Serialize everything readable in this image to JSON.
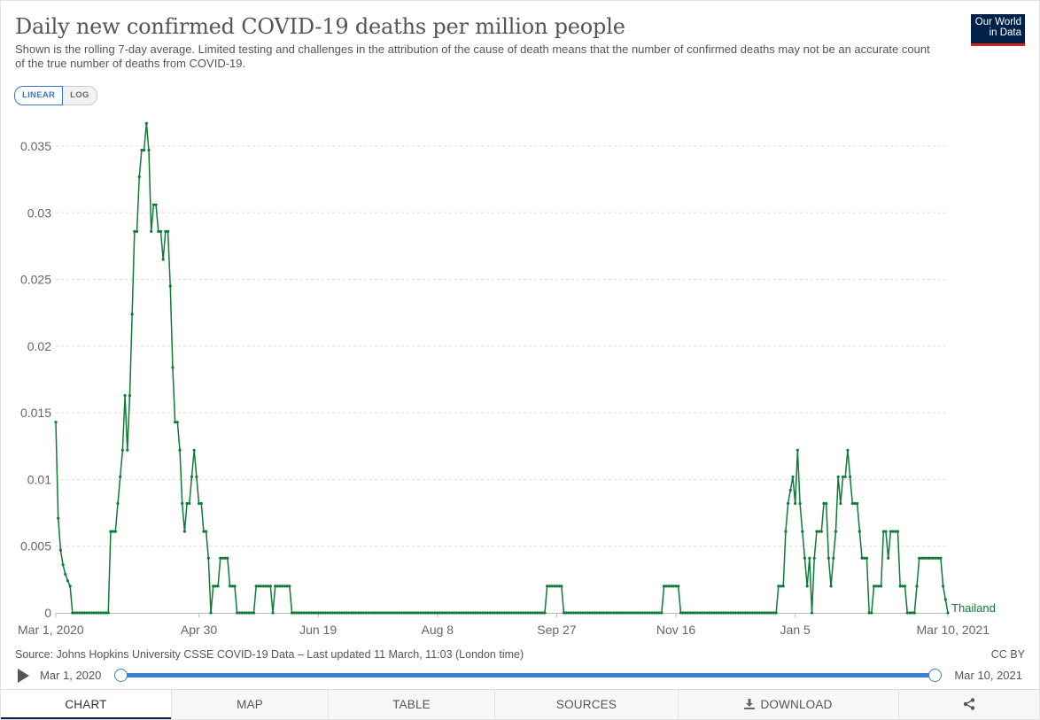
{
  "title": "Daily new confirmed COVID-19 deaths per million people",
  "subtitle": "Shown is the rolling 7-day average. Limited testing and challenges in the attribution of the cause of death means that the number of confirmed deaths may not be an accurate count of the true number of deaths from COVID-19.",
  "logo": {
    "line1": "Our World",
    "line2": "in Data"
  },
  "scale_toggle": {
    "linear": "LINEAR",
    "log": "LOG",
    "active": "LINEAR"
  },
  "colors": {
    "series": "#0f7b36",
    "grid": "#dddddd",
    "accent": "#3b80d4",
    "brand": "#002147",
    "brand_bar": "#ce261e"
  },
  "chart_data": {
    "type": "line",
    "title": "Daily new confirmed COVID-19 deaths per million people",
    "x_start": "Mar 1, 2020",
    "x_end": "Mar 10, 2021",
    "x_tick_labels": [
      "Mar 1, 2020",
      "Apr 30",
      "Jun 19",
      "Aug 8",
      "Sep 27",
      "Nov 16",
      "Jan 5",
      "Mar 10, 2021"
    ],
    "x_tick_dates": [
      "2020-03-01",
      "2020-04-30",
      "2020-06-19",
      "2020-08-08",
      "2020-09-27",
      "2020-11-16",
      "2021-01-05",
      "2021-03-10"
    ],
    "y_ticks": [
      "0",
      "0.005",
      "0.01",
      "0.015",
      "0.02",
      "0.025",
      "0.03",
      "0.035"
    ],
    "y_tick_values": [
      0,
      0.005,
      0.01,
      0.015,
      0.02,
      0.025,
      0.03,
      0.035
    ],
    "ylim": [
      0,
      0.0365
    ],
    "grid": true,
    "series": [
      {
        "name": "Thailand",
        "color": "#0f7b36",
        "points": [
          [
            "2020-03-01",
            0.0143
          ],
          [
            "2020-03-02",
            0.0071
          ],
          [
            "2020-03-03",
            0.0047
          ],
          [
            "2020-03-04",
            0.0036
          ],
          [
            "2020-03-05",
            0.0029
          ],
          [
            "2020-03-06",
            0.0024
          ],
          [
            "2020-03-07",
            0.002
          ],
          [
            "2020-03-08",
            0
          ],
          [
            "2020-03-23",
            0
          ],
          [
            "2020-03-24",
            0.0061
          ],
          [
            "2020-03-26",
            0.0061
          ],
          [
            "2020-03-27",
            0.0082
          ],
          [
            "2020-03-28",
            0.0102
          ],
          [
            "2020-03-29",
            0.0122
          ],
          [
            "2020-03-30",
            0.0163
          ],
          [
            "2020-03-31",
            0.0122
          ],
          [
            "2020-04-01",
            0.0163
          ],
          [
            "2020-04-02",
            0.0224
          ],
          [
            "2020-04-03",
            0.0286
          ],
          [
            "2020-04-04",
            0.0286
          ],
          [
            "2020-04-05",
            0.0327
          ],
          [
            "2020-04-06",
            0.0347
          ],
          [
            "2020-04-07",
            0.0347
          ],
          [
            "2020-04-08",
            0.0367
          ],
          [
            "2020-04-09",
            0.0347
          ],
          [
            "2020-04-10",
            0.0286
          ],
          [
            "2020-04-11",
            0.0306
          ],
          [
            "2020-04-12",
            0.0306
          ],
          [
            "2020-04-13",
            0.0286
          ],
          [
            "2020-04-14",
            0.0286
          ],
          [
            "2020-04-15",
            0.0265
          ],
          [
            "2020-04-16",
            0.0286
          ],
          [
            "2020-04-17",
            0.0286
          ],
          [
            "2020-04-18",
            0.0245
          ],
          [
            "2020-04-19",
            0.0184
          ],
          [
            "2020-04-20",
            0.0143
          ],
          [
            "2020-04-21",
            0.0143
          ],
          [
            "2020-04-22",
            0.0122
          ],
          [
            "2020-04-23",
            0.0082
          ],
          [
            "2020-04-24",
            0.0061
          ],
          [
            "2020-04-25",
            0.0082
          ],
          [
            "2020-04-26",
            0.0082
          ],
          [
            "2020-04-27",
            0.0102
          ],
          [
            "2020-04-28",
            0.0122
          ],
          [
            "2020-04-29",
            0.0102
          ],
          [
            "2020-04-30",
            0.0082
          ],
          [
            "2020-05-01",
            0.0082
          ],
          [
            "2020-05-02",
            0.0061
          ],
          [
            "2020-05-03",
            0.0061
          ],
          [
            "2020-05-04",
            0.0041
          ],
          [
            "2020-05-05",
            0
          ],
          [
            "2020-05-06",
            0.002
          ],
          [
            "2020-05-08",
            0.002
          ],
          [
            "2020-05-09",
            0.0041
          ],
          [
            "2020-05-12",
            0.0041
          ],
          [
            "2020-05-13",
            0.002
          ],
          [
            "2020-05-15",
            0.002
          ],
          [
            "2020-05-16",
            0
          ],
          [
            "2020-05-23",
            0
          ],
          [
            "2020-05-24",
            0.002
          ],
          [
            "2020-05-30",
            0.002
          ],
          [
            "2020-05-31",
            0
          ],
          [
            "2020-06-01",
            0.002
          ],
          [
            "2020-06-07",
            0.002
          ],
          [
            "2020-06-08",
            0
          ],
          [
            "2020-09-22",
            0
          ],
          [
            "2020-09-23",
            0.002
          ],
          [
            "2020-09-29",
            0.002
          ],
          [
            "2020-09-30",
            0
          ],
          [
            "2020-11-10",
            0
          ],
          [
            "2020-11-11",
            0.002
          ],
          [
            "2020-11-17",
            0.002
          ],
          [
            "2020-11-18",
            0
          ],
          [
            "2020-12-28",
            0
          ],
          [
            "2020-12-29",
            0.002
          ],
          [
            "2020-12-31",
            0.002
          ],
          [
            "2021-01-01",
            0.0061
          ],
          [
            "2021-01-02",
            0.0082
          ],
          [
            "2021-01-04",
            0.0102
          ],
          [
            "2021-01-05",
            0.0082
          ],
          [
            "2021-01-06",
            0.0122
          ],
          [
            "2021-01-07",
            0.0082
          ],
          [
            "2021-01-08",
            0.0061
          ],
          [
            "2021-01-09",
            0.0041
          ],
          [
            "2021-01-10",
            0.002
          ],
          [
            "2021-01-11",
            0.0041
          ],
          [
            "2021-01-12",
            0
          ],
          [
            "2021-01-13",
            0.0041
          ],
          [
            "2021-01-14",
            0.0061
          ],
          [
            "2021-01-16",
            0.0061
          ],
          [
            "2021-01-17",
            0.0082
          ],
          [
            "2021-01-18",
            0.0082
          ],
          [
            "2021-01-19",
            0.0041
          ],
          [
            "2021-01-20",
            0.002
          ],
          [
            "2021-01-21",
            0.0041
          ],
          [
            "2021-01-22",
            0.0061
          ],
          [
            "2021-01-23",
            0.0102
          ],
          [
            "2021-01-24",
            0.0082
          ],
          [
            "2021-01-25",
            0.0102
          ],
          [
            "2021-01-26",
            0.0102
          ],
          [
            "2021-01-27",
            0.0122
          ],
          [
            "2021-01-28",
            0.0102
          ],
          [
            "2021-01-29",
            0.0082
          ],
          [
            "2021-01-31",
            0.0082
          ],
          [
            "2021-02-01",
            0.0061
          ],
          [
            "2021-02-02",
            0.0041
          ],
          [
            "2021-02-04",
            0.0041
          ],
          [
            "2021-02-05",
            0
          ],
          [
            "2021-02-06",
            0
          ],
          [
            "2021-02-07",
            0.002
          ],
          [
            "2021-02-10",
            0.002
          ],
          [
            "2021-02-11",
            0.0061
          ],
          [
            "2021-02-12",
            0.0061
          ],
          [
            "2021-02-13",
            0.0041
          ],
          [
            "2021-02-14",
            0.0061
          ],
          [
            "2021-02-17",
            0.0061
          ],
          [
            "2021-02-18",
            0.002
          ],
          [
            "2021-02-20",
            0.002
          ],
          [
            "2021-02-21",
            0
          ],
          [
            "2021-02-24",
            0
          ],
          [
            "2021-02-25",
            0.002
          ],
          [
            "2021-02-26",
            0.0041
          ],
          [
            "2021-03-07",
            0.0041
          ],
          [
            "2021-03-08",
            0.002
          ],
          [
            "2021-03-10",
            0
          ]
        ]
      }
    ]
  },
  "footer": {
    "source": "Source: Johns Hopkins University CSSE COVID-19 Data – Last updated 11 March, 11:03 (London time)",
    "license": "CC BY"
  },
  "timeline": {
    "start_label": "Mar 1, 2020",
    "end_label": "Mar 10, 2021"
  },
  "tabs": [
    {
      "label": "CHART",
      "active": true
    },
    {
      "label": "MAP",
      "active": false
    },
    {
      "label": "TABLE",
      "active": false
    },
    {
      "label": "SOURCES",
      "active": false
    },
    {
      "label": "DOWNLOAD",
      "active": false,
      "icon": "download-icon"
    },
    {
      "label": "",
      "active": false,
      "icon": "share-icon"
    }
  ]
}
